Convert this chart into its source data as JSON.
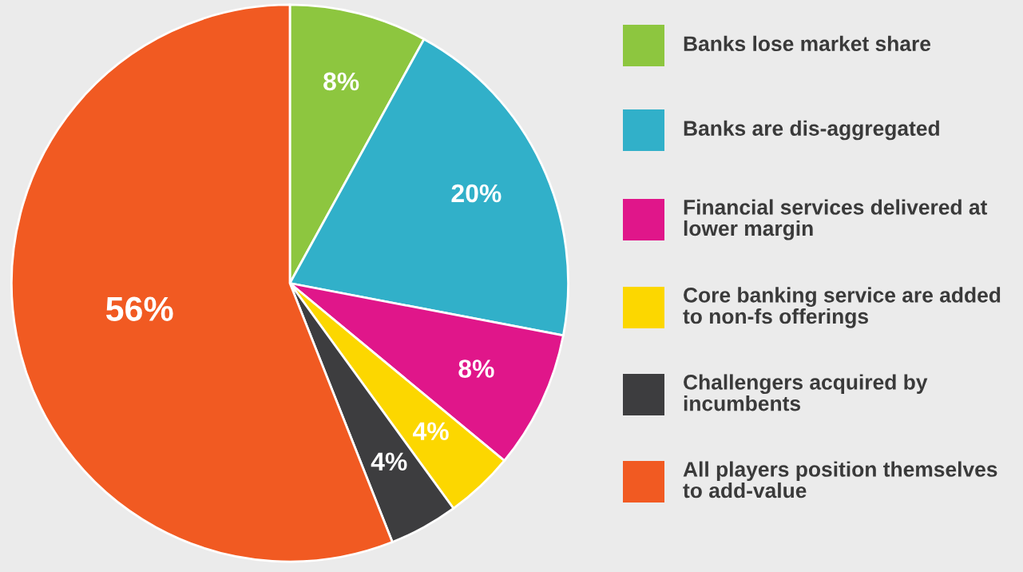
{
  "chart_data": {
    "type": "pie",
    "categories": [
      "Banks lose market share",
      "Banks are dis-aggregated",
      "Financial services delivered at lower margin",
      "Core banking service are added to non-fs offerings",
      "Challengers acquired by incumbents",
      "All players position themselves to add-value"
    ],
    "values": [
      8,
      20,
      8,
      4,
      4,
      56
    ],
    "colors": [
      "#8dc63f",
      "#31b0c9",
      "#e0168a",
      "#fcd700",
      "#3d3d3f",
      "#f15a22"
    ],
    "value_labels": [
      "8%",
      "20%",
      "8%",
      "4%",
      "4%",
      "56%"
    ],
    "legend": "right"
  }
}
